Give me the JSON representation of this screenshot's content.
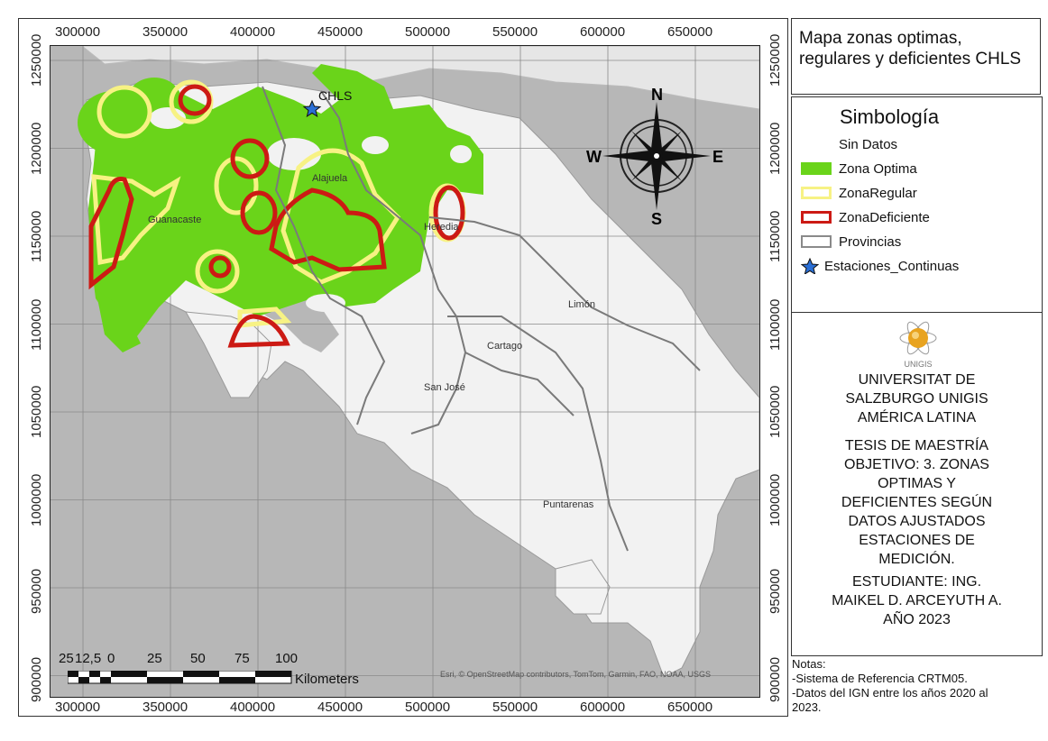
{
  "map": {
    "x_ticks": [
      "300000",
      "350000",
      "400000",
      "450000",
      "500000",
      "550000",
      "600000",
      "650000"
    ],
    "y_ticks": [
      "1250000",
      "1200000",
      "1150000",
      "1100000",
      "1050000",
      "1000000",
      "950000",
      "900000"
    ],
    "province_labels": [
      "Guanacaste",
      "Alajuela",
      "Heredia",
      "Limón",
      "Cartago",
      "San José",
      "Puntarenas"
    ],
    "station_label": "CHLS",
    "compass": {
      "n": "N",
      "s": "S",
      "e": "E",
      "w": "W"
    },
    "attribution": "Esri, © OpenStreetMap contributors, TomTom, Garmin, FAO, NOAA, USGS",
    "scale": {
      "labels": [
        "25",
        "12,5",
        "0",
        "25",
        "50",
        "75",
        "100"
      ],
      "unit": "Kilometers"
    },
    "colors": {
      "optima": "#6ad41a",
      "regular": "#f7f284",
      "deficiente": "#cc1a14",
      "land": "#f2f2f2",
      "sea": "#b7b7b7",
      "star": "#2a6fd6"
    }
  },
  "title": "Mapa zonas optimas, regulares y deficientes CHLS",
  "legend": {
    "title": "Simbología",
    "items": [
      {
        "label": "Sin Datos",
        "kind": "none"
      },
      {
        "label": "Zona Optima",
        "kind": "fill"
      },
      {
        "label": "ZonaRegular",
        "kind": "regular"
      },
      {
        "label": "ZonaDeficiente",
        "kind": "deficiente"
      },
      {
        "label": "Provincias",
        "kind": "prov"
      },
      {
        "label": "Estaciones_Continuas",
        "kind": "star"
      }
    ]
  },
  "info": {
    "university": "UNIVERSITAT DE SALZBURGO UNIGIS AMÉRICA LATINA",
    "logo_text": "UNIGIS",
    "thesis": "TESIS DE MAESTRÍA\nOBJETIVO: 3. ZONAS\nOPTIMAS Y\nDEFICIENTES SEGÚN\nDATOS AJUSTADOS\nESTACIONES DE\nMEDICIÓN.",
    "student": "ESTUDIANTE: ING.\nMAIKEL D. ARCEYUTH A.\nAÑO 2023"
  },
  "notes": "Notas:\n-Sistema de Referencia CRTM05.\n-Datos del IGN entre los años 2020 al\n2023."
}
